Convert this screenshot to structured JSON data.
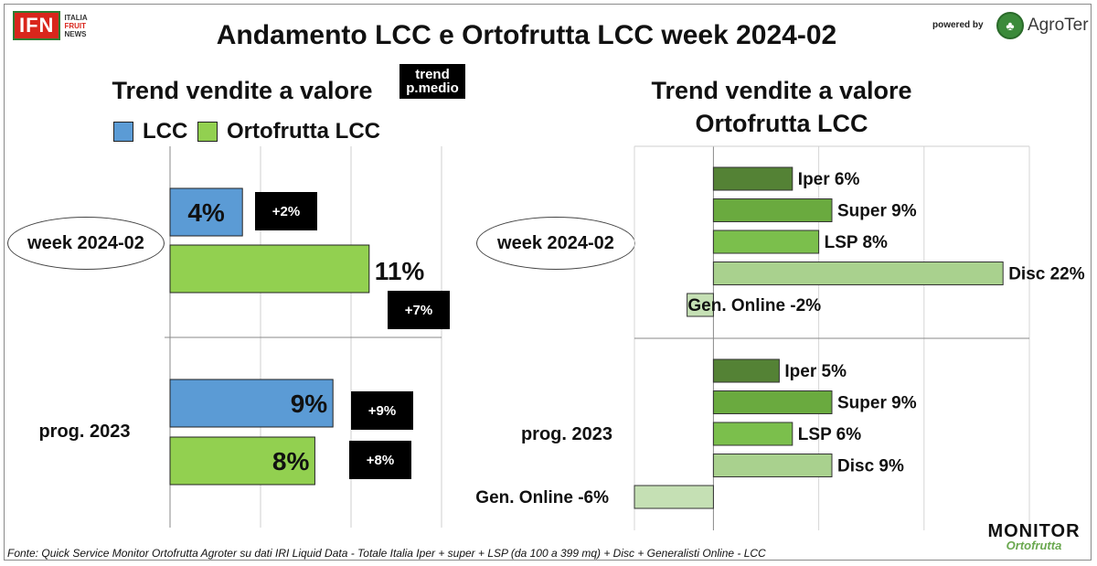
{
  "header": {
    "title": "Andamento LCC e Ortofrutta LCC week 2024-02",
    "logo_ifn": "IFN",
    "logo_ifn_words": [
      "ITALIA",
      "FRUIT",
      "NEWS"
    ],
    "powered_by": "powered by",
    "logo_agroter": "AgroTer"
  },
  "left_panel": {
    "subtitle": "Trend vendite a valore",
    "badge_header": "trend p.medio"
  },
  "right_panel": {
    "subtitle_line1": "Trend vendite a valore",
    "subtitle_line2": "Ortofrutta LCC"
  },
  "footer": {
    "source": "Fonte: Quick Service Monitor Ortofrutta Agroter su dati IRI Liquid Data - Totale Italia Iper + super + LSP (da 100 a 399 mq) + Disc + Generalisti Online - LCC",
    "logo_monitor_top": "MONITOR",
    "logo_monitor_bottom": "Ortofrutta"
  },
  "chart_data": [
    {
      "type": "bar",
      "orientation": "horizontal",
      "title": "Trend vendite a valore",
      "xlim": [
        0,
        15
      ],
      "grid": true,
      "legend_placement": "top",
      "categories": [
        "week 2024-02",
        "prog. 2023"
      ],
      "series": [
        {
          "name": "LCC",
          "color": "#5b9bd5",
          "values": [
            4,
            9
          ],
          "labels": [
            "4%",
            "9%"
          ],
          "trend_p_medio": [
            "+2%",
            "+9%"
          ]
        },
        {
          "name": "Ortofrutta LCC",
          "color": "#92d050",
          "values": [
            11,
            8
          ],
          "labels": [
            "11%",
            "8%"
          ],
          "trend_p_medio": [
            "+7%",
            "+8%"
          ]
        }
      ]
    },
    {
      "type": "bar",
      "orientation": "horizontal",
      "title": "Trend vendite a valore Ortofrutta LCC",
      "xlim": [
        -6,
        24
      ],
      "grid": true,
      "groups": [
        {
          "name": "week 2024-02",
          "bars": [
            {
              "channel": "Iper",
              "value": 6,
              "label": "Iper 6%",
              "color": "#548235"
            },
            {
              "channel": "Super",
              "value": 9,
              "label": "Super 9%",
              "color": "#6aaa3f"
            },
            {
              "channel": "LSP",
              "value": 8,
              "label": "LSP 8%",
              "color": "#7bbf4c"
            },
            {
              "channel": "Disc",
              "value": 22,
              "label": "Disc 22%",
              "color": "#a9d18e"
            },
            {
              "channel": "Gen. Online",
              "value": -2,
              "label": "Gen. Online -2%",
              "color": "#c5e0b4"
            }
          ]
        },
        {
          "name": "prog. 2023",
          "bars": [
            {
              "channel": "Iper",
              "value": 5,
              "label": "Iper 5%",
              "color": "#548235"
            },
            {
              "channel": "Super",
              "value": 9,
              "label": "Super 9%",
              "color": "#6aaa3f"
            },
            {
              "channel": "LSP",
              "value": 6,
              "label": "LSP 6%",
              "color": "#7bbf4c"
            },
            {
              "channel": "Disc",
              "value": 9,
              "label": "Disc 9%",
              "color": "#a9d18e"
            },
            {
              "channel": "Gen. Online",
              "value": -6,
              "label": "Gen. Online -6%",
              "color": "#c5e0b4"
            }
          ]
        }
      ]
    }
  ]
}
